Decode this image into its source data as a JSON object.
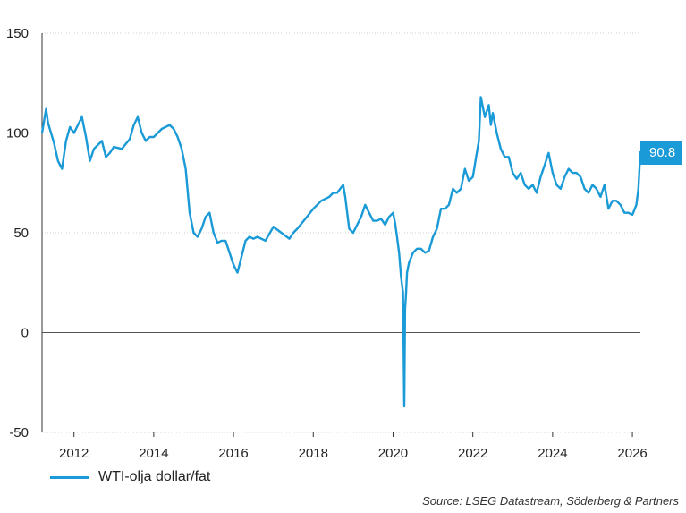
{
  "chart_data": {
    "type": "line",
    "title": "",
    "xlabel": "",
    "ylabel": "",
    "ylim": [
      -50,
      150
    ],
    "xlim": [
      2011.2,
      2026.2
    ],
    "y_ticks": [
      150,
      100,
      50,
      0,
      -50
    ],
    "y_tick_labels": [
      "150",
      "100",
      "50",
      "0",
      "-50"
    ],
    "x_ticks": [
      2012,
      2014,
      2016,
      2018,
      2020,
      2022,
      2024,
      2026
    ],
    "x_tick_labels": [
      "2012",
      "2014",
      "2016",
      "2018",
      "2020",
      "2022",
      "2024",
      "2026"
    ],
    "grid": "horizontal dotted",
    "series": [
      {
        "name": "WTI-olja dollar/fat",
        "color": "#1a9ad6",
        "x": [
          2011.2,
          2011.3,
          2011.35,
          2011.5,
          2011.6,
          2011.7,
          2011.8,
          2011.9,
          2012.0,
          2012.1,
          2012.2,
          2012.3,
          2012.4,
          2012.5,
          2012.6,
          2012.7,
          2012.8,
          2012.9,
          2013.0,
          2013.2,
          2013.4,
          2013.5,
          2013.6,
          2013.7,
          2013.8,
          2013.9,
          2014.0,
          2014.2,
          2014.4,
          2014.5,
          2014.6,
          2014.7,
          2014.8,
          2014.9,
          2015.0,
          2015.1,
          2015.2,
          2015.3,
          2015.4,
          2015.5,
          2015.6,
          2015.7,
          2015.8,
          2015.9,
          2016.0,
          2016.1,
          2016.2,
          2016.3,
          2016.4,
          2016.5,
          2016.6,
          2016.8,
          2017.0,
          2017.2,
          2017.4,
          2017.5,
          2017.6,
          2017.8,
          2018.0,
          2018.2,
          2018.4,
          2018.5,
          2018.6,
          2018.75,
          2018.8,
          2018.9,
          2019.0,
          2019.1,
          2019.2,
          2019.3,
          2019.4,
          2019.5,
          2019.6,
          2019.7,
          2019.8,
          2019.9,
          2020.0,
          2020.05,
          2020.1,
          2020.15,
          2020.2,
          2020.25,
          2020.28,
          2020.3,
          2020.32,
          2020.35,
          2020.4,
          2020.5,
          2020.6,
          2020.7,
          2020.8,
          2020.9,
          2021.0,
          2021.1,
          2021.2,
          2021.3,
          2021.4,
          2021.5,
          2021.6,
          2021.7,
          2021.8,
          2021.9,
          2022.0,
          2022.1,
          2022.15,
          2022.2,
          2022.3,
          2022.4,
          2022.45,
          2022.5,
          2022.6,
          2022.7,
          2022.8,
          2022.9,
          2023.0,
          2023.1,
          2023.2,
          2023.3,
          2023.4,
          2023.5,
          2023.6,
          2023.7,
          2023.8,
          2023.9,
          2024.0,
          2024.1,
          2024.2,
          2024.3,
          2024.4,
          2024.5,
          2024.6,
          2024.7,
          2024.8,
          2024.9,
          2025.0,
          2025.1,
          2025.2,
          2025.3,
          2025.4,
          2025.5,
          2025.6,
          2025.7,
          2025.8,
          2025.9,
          2026.0,
          2026.1,
          2026.15,
          2026.2
        ],
        "values": [
          100,
          112,
          105,
          95,
          86,
          82,
          96,
          103,
          100,
          104,
          108,
          98,
          86,
          92,
          94,
          96,
          88,
          90,
          93,
          92,
          97,
          104,
          108,
          100,
          96,
          98,
          98,
          102,
          104,
          102,
          98,
          92,
          82,
          60,
          50,
          48,
          52,
          58,
          60,
          50,
          45,
          46,
          46,
          40,
          34,
          30,
          38,
          46,
          48,
          47,
          48,
          46,
          53,
          50,
          47,
          50,
          52,
          57,
          62,
          66,
          68,
          70,
          70,
          74,
          68,
          52,
          50,
          54,
          58,
          64,
          60,
          56,
          56,
          57,
          54,
          58,
          60,
          55,
          48,
          40,
          28,
          20,
          -37,
          12,
          18,
          30,
          35,
          40,
          42,
          42,
          40,
          41,
          48,
          52,
          62,
          62,
          64,
          72,
          70,
          72,
          82,
          76,
          78,
          90,
          96,
          118,
          108,
          114,
          104,
          110,
          100,
          92,
          88,
          88,
          80,
          77,
          80,
          74,
          72,
          74,
          70,
          78,
          84,
          90,
          80,
          74,
          72,
          78,
          82,
          80,
          80,
          78,
          72,
          70,
          74,
          72,
          68,
          74,
          62,
          66,
          66,
          64,
          60,
          60,
          59,
          64,
          72,
          90.8
        ]
      }
    ],
    "last_value_label": "90.8",
    "legend": {
      "placement": "bottom-left",
      "label": "WTI-olja dollar/fat"
    },
    "source": "Source: LSEG Datastream, Söderberg & Partners"
  }
}
